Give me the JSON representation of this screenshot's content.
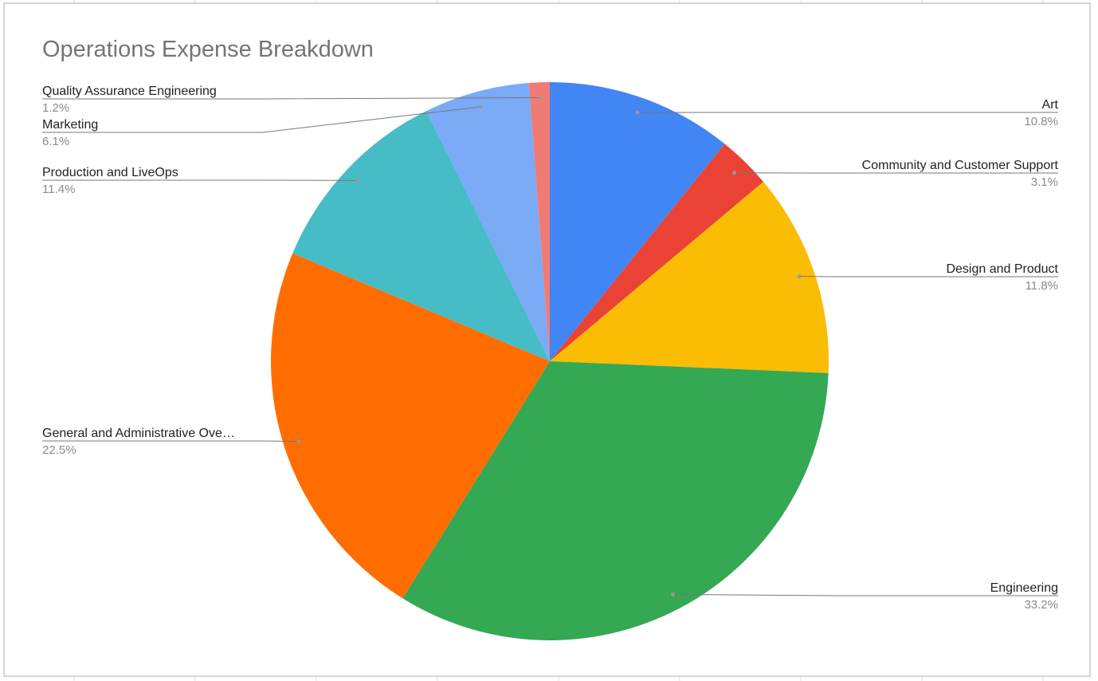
{
  "chart_data": {
    "type": "pie",
    "title": "Operations Expense Breakdown",
    "categories": [
      "Art",
      "Community and Customer Support",
      "Design and Product",
      "Engineering",
      "General and Administrative Ove…",
      "Production and LiveOps",
      "Marketing",
      "Quality Assurance Engineering"
    ],
    "values": [
      10.8,
      3.1,
      11.8,
      33.2,
      22.5,
      11.4,
      6.1,
      1.2
    ],
    "value_labels": [
      "10.8%",
      "3.1%",
      "11.8%",
      "33.2%",
      "22.5%",
      "11.4%",
      "6.1%",
      "1.2%"
    ],
    "colors": [
      "#4285f4",
      "#ea4335",
      "#fbbc04",
      "#34a853",
      "#ff6d01",
      "#46bdc6",
      "#7baaf7",
      "#f07b72"
    ]
  }
}
